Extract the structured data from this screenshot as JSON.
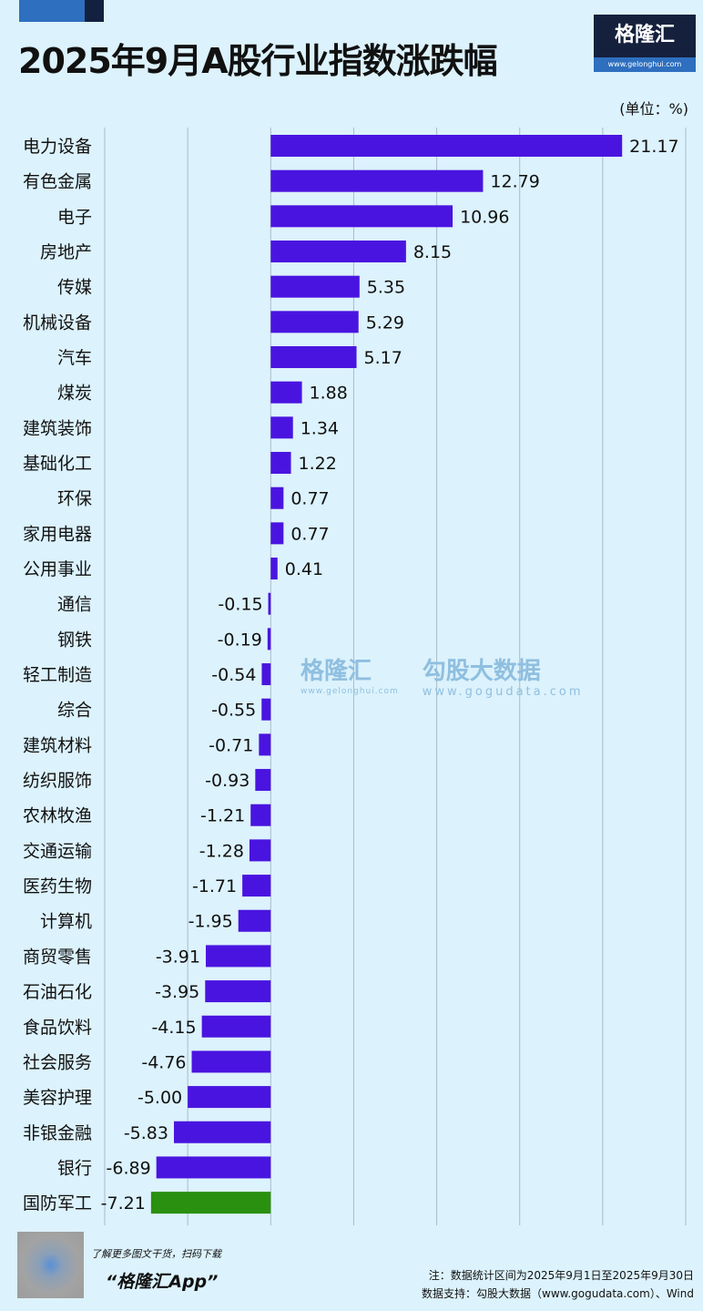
{
  "title": "2025年9月A股行业指数涨跌幅",
  "logo": {
    "name": "格隆汇",
    "url": "www.gelonghui.com"
  },
  "watermark": {
    "left": "格隆汇",
    "left_url": "www.gelonghui.com",
    "right": "勾股大数据",
    "right_url": "www.gogudata.com"
  },
  "chart_data": {
    "type": "bar",
    "orientation": "horizontal",
    "unit_label": "(单位：%)",
    "categories": [
      "电力设备",
      "有色金属",
      "电子",
      "房地产",
      "传媒",
      "机械设备",
      "汽车",
      "煤炭",
      "建筑装饰",
      "基础化工",
      "环保",
      "家用电器",
      "公用事业",
      "通信",
      "钢铁",
      "轻工制造",
      "综合",
      "建筑材料",
      "纺织服饰",
      "农林牧渔",
      "交通运输",
      "医药生物",
      "计算机",
      "商贸零售",
      "石油石化",
      "食品饮料",
      "社会服务",
      "美容护理",
      "非银金融",
      "银行",
      "国防军工"
    ],
    "values": [
      21.17,
      12.79,
      10.96,
      8.15,
      5.35,
      5.29,
      5.17,
      1.88,
      1.34,
      1.22,
      0.77,
      0.77,
      0.41,
      -0.15,
      -0.19,
      -0.54,
      -0.55,
      -0.71,
      -0.93,
      -1.21,
      -1.28,
      -1.71,
      -1.95,
      -3.91,
      -3.95,
      -4.15,
      -4.76,
      -5.0,
      -5.83,
      -6.89,
      -7.21
    ],
    "value_labels": [
      "21.17",
      "12.79",
      "10.96",
      "8.15",
      "5.35",
      "5.29",
      "5.17",
      "1.88",
      "1.34",
      "1.22",
      "0.77",
      "0.77",
      "0.41",
      "-0.15",
      "-0.19",
      "-0.54",
      "-0.55",
      "-0.71",
      "-0.93",
      "-1.21",
      "-1.28",
      "-1.71",
      "-1.95",
      "-3.91",
      "-3.95",
      "-4.15",
      "-4.76",
      "-5.00",
      "-5.83",
      "-6.89",
      "-7.21"
    ],
    "xlim": [
      -10,
      25
    ],
    "grid": true,
    "bar_color": "#4a14e0",
    "highlight_color": "#2a9010",
    "highlight_category": "国防军工"
  },
  "footer": {
    "promo_line": "了解更多图文干货，扫码下载",
    "promo_app": "“格隆汇App”",
    "note": "注：数据统计区间为2025年9月1日至2025年9月30日",
    "source": "数据支持：勾股大数据（www.gogudata.com）、Wind"
  }
}
